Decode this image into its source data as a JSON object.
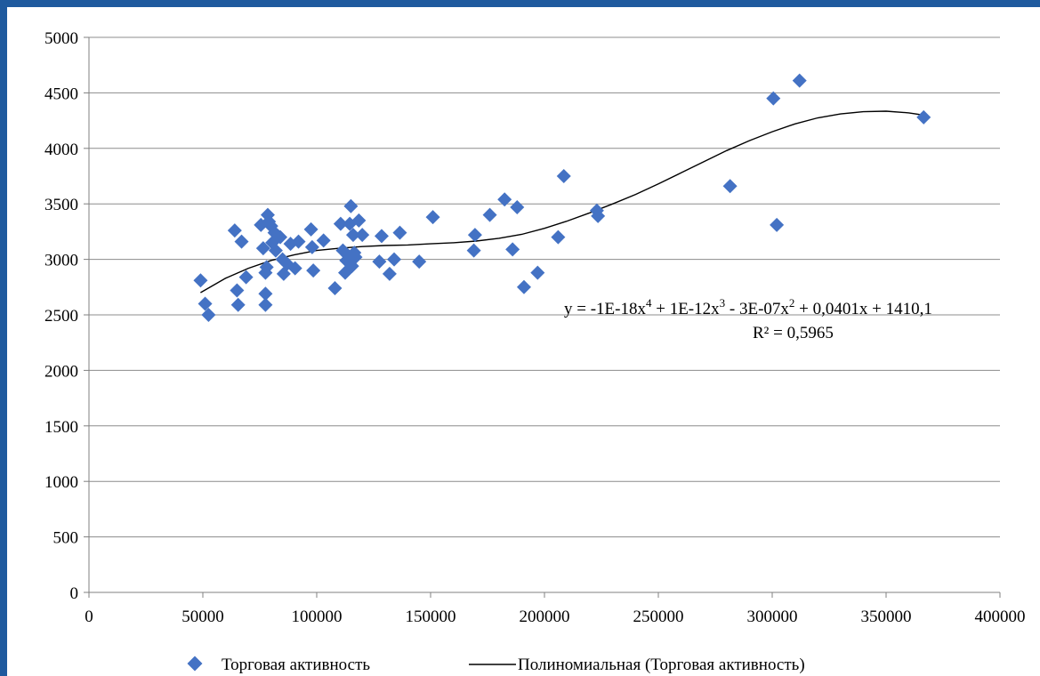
{
  "chart_data": {
    "type": "scatter",
    "title": "",
    "xlabel": "",
    "ylabel": "",
    "xlim": [
      0,
      400000
    ],
    "ylim": [
      0,
      5000
    ],
    "x_ticks": [
      "0",
      "50000",
      "100000",
      "150000",
      "200000",
      "250000",
      "300000",
      "350000",
      "400000"
    ],
    "y_ticks": [
      "0",
      "500",
      "1000",
      "1500",
      "2000",
      "2500",
      "3000",
      "3500",
      "4000",
      "4500",
      "5000"
    ],
    "grid": "horizontal",
    "legend_position": "bottom",
    "colors": {
      "marker": "#4472c4",
      "trendline": "#000000",
      "frame": "#1f5a9e",
      "grid": "#8c8c8c"
    },
    "series": [
      {
        "name": "Торговая активность",
        "marker": "diamond",
        "points": [
          [
            49000,
            2810
          ],
          [
            51000,
            2600
          ],
          [
            52500,
            2500
          ],
          [
            64000,
            3260
          ],
          [
            65000,
            2720
          ],
          [
            65500,
            2590
          ],
          [
            67000,
            3160
          ],
          [
            69000,
            2840
          ],
          [
            75500,
            3310
          ],
          [
            76500,
            3100
          ],
          [
            77500,
            2880
          ],
          [
            77500,
            2590
          ],
          [
            77500,
            2690
          ],
          [
            78000,
            2930
          ],
          [
            78500,
            3400
          ],
          [
            79000,
            3340
          ],
          [
            80000,
            3300
          ],
          [
            80500,
            3150
          ],
          [
            81500,
            3240
          ],
          [
            82000,
            3080
          ],
          [
            83000,
            3210
          ],
          [
            84000,
            3200
          ],
          [
            85000,
            3000
          ],
          [
            85500,
            2870
          ],
          [
            87000,
            2960
          ],
          [
            88500,
            3140
          ],
          [
            90500,
            2920
          ],
          [
            92000,
            3160
          ],
          [
            97500,
            3270
          ],
          [
            98000,
            3110
          ],
          [
            98500,
            2900
          ],
          [
            103000,
            3170
          ],
          [
            108000,
            2740
          ],
          [
            110500,
            3320
          ],
          [
            111500,
            3080
          ],
          [
            112500,
            2880
          ],
          [
            113000,
            2990
          ],
          [
            113500,
            3040
          ],
          [
            114500,
            3320
          ],
          [
            115000,
            3480
          ],
          [
            115500,
            2940
          ],
          [
            116000,
            3220
          ],
          [
            116500,
            3060
          ],
          [
            117000,
            3020
          ],
          [
            118500,
            3350
          ],
          [
            120000,
            3220
          ],
          [
            127500,
            2980
          ],
          [
            128500,
            3210
          ],
          [
            132000,
            2870
          ],
          [
            134000,
            3000
          ],
          [
            136500,
            3240
          ],
          [
            145000,
            2980
          ],
          [
            151000,
            3380
          ],
          [
            169000,
            3080
          ],
          [
            169500,
            3220
          ],
          [
            176000,
            3400
          ],
          [
            182500,
            3540
          ],
          [
            186000,
            3090
          ],
          [
            188000,
            3470
          ],
          [
            191000,
            2750
          ],
          [
            197000,
            2880
          ],
          [
            206000,
            3200
          ],
          [
            208500,
            3750
          ],
          [
            223000,
            3440
          ],
          [
            223500,
            3390
          ],
          [
            281500,
            3660
          ],
          [
            300500,
            4450
          ],
          [
            302000,
            3310
          ],
          [
            312000,
            4610
          ],
          [
            366500,
            4280
          ]
        ]
      }
    ],
    "trendline": {
      "name": "Полиномиальная (Торговая активность)",
      "type": "polynomial",
      "order": 4,
      "x_range": [
        49000,
        366500
      ],
      "equation_text": {
        "prefix": "y = -1E-18x",
        "exp4": "4",
        "part2": " + 1E-12x",
        "exp3": "3",
        "part3": " - 3E-07x",
        "exp2": "2",
        "part4": " + 0,0401x + 1410,1"
      },
      "r2_text": "R² = 0,5965",
      "curve": [
        [
          49000,
          2700
        ],
        [
          60000,
          2830
        ],
        [
          70000,
          2920
        ],
        [
          80000,
          2990
        ],
        [
          90000,
          3040
        ],
        [
          100000,
          3080
        ],
        [
          110000,
          3100
        ],
        [
          120000,
          3115
        ],
        [
          130000,
          3125
        ],
        [
          140000,
          3130
        ],
        [
          150000,
          3140
        ],
        [
          160000,
          3150
        ],
        [
          170000,
          3165
        ],
        [
          180000,
          3190
        ],
        [
          190000,
          3225
        ],
        [
          200000,
          3280
        ],
        [
          210000,
          3345
        ],
        [
          220000,
          3420
        ],
        [
          230000,
          3500
        ],
        [
          240000,
          3585
        ],
        [
          250000,
          3680
        ],
        [
          260000,
          3780
        ],
        [
          270000,
          3880
        ],
        [
          280000,
          3980
        ],
        [
          290000,
          4070
        ],
        [
          300000,
          4150
        ],
        [
          310000,
          4220
        ],
        [
          320000,
          4275
        ],
        [
          330000,
          4310
        ],
        [
          340000,
          4330
        ],
        [
          350000,
          4335
        ],
        [
          360000,
          4320
        ],
        [
          366500,
          4300
        ]
      ]
    }
  }
}
